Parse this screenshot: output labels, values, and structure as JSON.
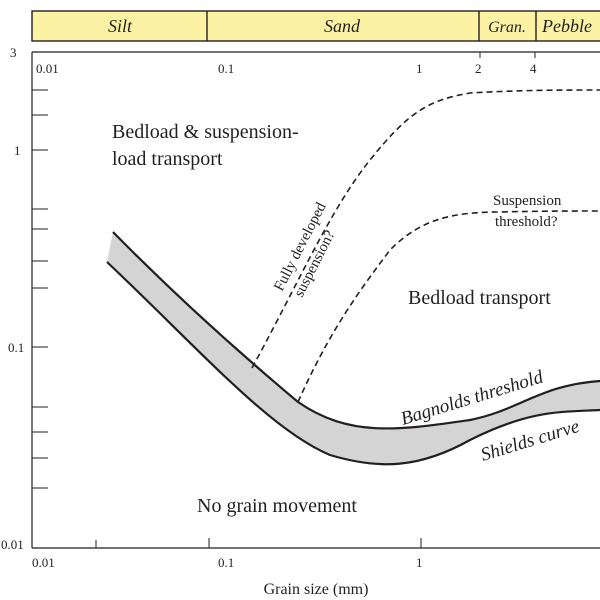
{
  "grain_classes": [
    {
      "name": "Silt"
    },
    {
      "name": "Sand"
    },
    {
      "name": "Gran."
    },
    {
      "name": "Pebble"
    }
  ],
  "x_axis": {
    "title": "Grain size (mm)",
    "bottom_ticks": [
      "0.01",
      "0.1",
      "1"
    ],
    "top_ticks": [
      "0.01",
      "0.1",
      "1",
      "2",
      "4"
    ]
  },
  "y_axis": {
    "ticks": [
      "3",
      "1",
      "0.1",
      "0.01"
    ]
  },
  "regions": {
    "upper_line1": "Bedload & suspension-",
    "upper_line2": "load transport",
    "middle": "Bedload transport",
    "lower": "No grain movement"
  },
  "curve_labels": {
    "fully_line1": "Fully developed",
    "fully_line2": "suspension?",
    "susp_line1": "Suspension",
    "susp_line2": "threshold?",
    "bagnold": "Bagnolds threshold",
    "shields": "Shields curve"
  },
  "colors": {
    "band_fill": "#fbf3a3",
    "envelope_fill": "#d4d4d4",
    "ink": "#231f20"
  }
}
